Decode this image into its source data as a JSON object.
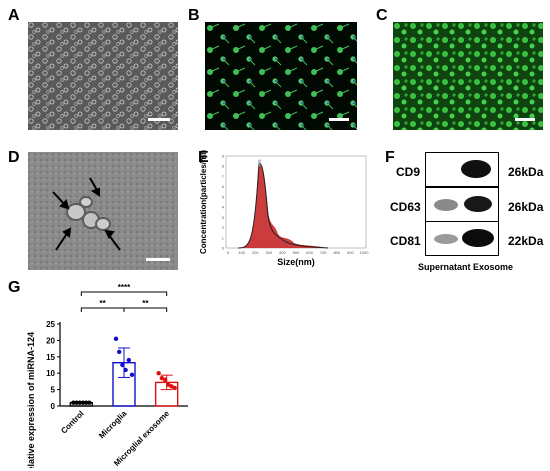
{
  "panels": {
    "a": "A",
    "b": "B",
    "c": "C",
    "d": "D",
    "e": "E",
    "f": "F",
    "g": "G"
  },
  "nta": {
    "xlabel": "Size(nm)",
    "ylabel": "Concentration(particles/ml)",
    "x_ticks": [
      "0",
      "100",
      "200",
      "300",
      "400",
      "500",
      "600",
      "700",
      "800",
      "900",
      "1000"
    ],
    "y_ticks": [
      "0",
      "1",
      "2",
      "3",
      "4",
      "5",
      "6",
      "7",
      "8",
      "9"
    ]
  },
  "blot": {
    "rows": [
      {
        "name": "CD9",
        "size": "26kDa"
      },
      {
        "name": "CD63",
        "size": "26kDa"
      },
      {
        "name": "CD81",
        "size": "22kDa"
      }
    ],
    "caption": "Supernatant Exosome"
  },
  "chart_data": {
    "type": "bar",
    "categories": [
      "Control",
      "Microglia",
      "Microglial exosome"
    ],
    "ylabel": "Relative expression of miRNA-124",
    "ylim": [
      0,
      25
    ],
    "y_ticks": [
      0,
      5,
      10,
      15,
      20,
      25
    ],
    "series": [
      {
        "values": [
          1.0,
          13.2,
          7.2
        ],
        "errors": [
          0.1,
          4.5,
          2.2
        ],
        "colors": [
          "#000000",
          "#1010cc",
          "#dd1111"
        ],
        "points": [
          [
            1.0,
            1.0,
            1.0,
            1.0,
            1.0,
            1.0
          ],
          [
            20.5,
            16.5,
            12.5,
            11.0,
            14.0,
            9.5
          ],
          [
            10.0,
            8.5,
            8.0,
            6.5,
            6.0,
            5.5
          ]
        ]
      }
    ],
    "significance": [
      {
        "from": 0,
        "to": 2,
        "label": "****"
      },
      {
        "from": 0,
        "to": 1,
        "label": "**"
      },
      {
        "from": 1,
        "to": 2,
        "label": "**"
      }
    ]
  }
}
